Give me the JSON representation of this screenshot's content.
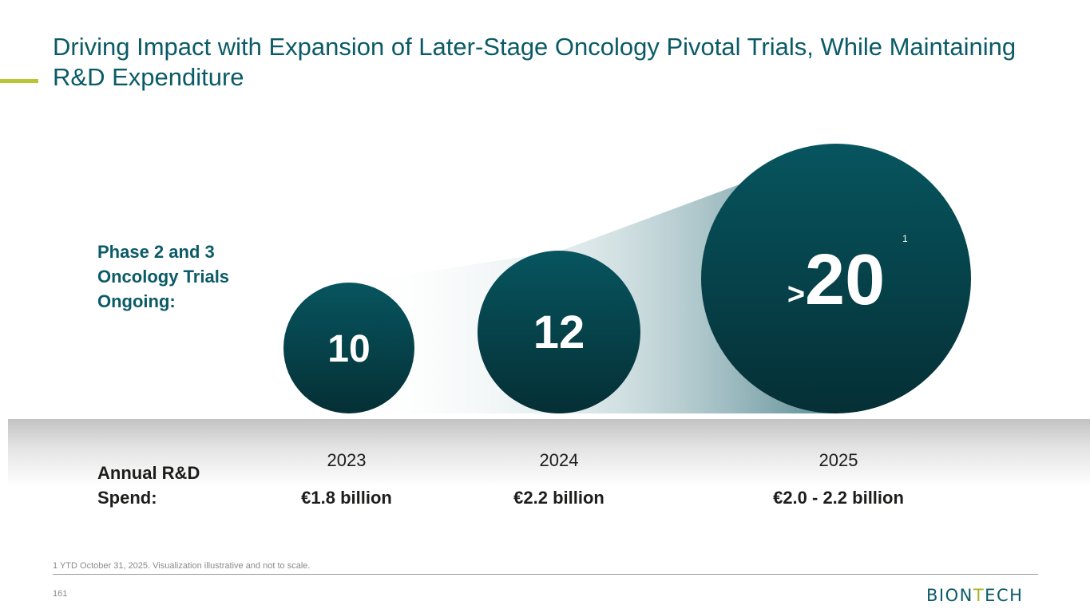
{
  "title": "Driving Impact with Expansion of Later-Stage Oncology Pivotal Trials, While Maintaining R&D Expenditure",
  "colors": {
    "accent": "#b9c631",
    "bubble_top": "#07555f",
    "bubble_bottom": "#052f35",
    "label_teal": "#0a5b67"
  },
  "trials_label": "Phase 2 and 3 Oncology Trials Ongoing:",
  "rd_label": "Annual R&D Spend:",
  "chart_data": {
    "type": "bubble",
    "categories": [
      "2023",
      "2024",
      "2025"
    ],
    "trials": [
      {
        "year": "2023",
        "value": 10,
        "display": "10",
        "prefix": "",
        "footnote_mark": ""
      },
      {
        "year": "2024",
        "value": 12,
        "display": "12",
        "prefix": "",
        "footnote_mark": ""
      },
      {
        "year": "2025",
        "value": 20,
        "display": "20",
        "prefix": ">",
        "footnote_mark": "1"
      }
    ],
    "rd_spend": [
      "€1.8 billion",
      "€2.2 billion",
      "€2.0 - 2.2 billion"
    ]
  },
  "footnote": "1 YTD October 31, 2025.  Visualization illustrative and not to scale.",
  "page_number": "161",
  "logo": {
    "part1": "BION",
    "part2": "T",
    "part3": "ECH"
  }
}
